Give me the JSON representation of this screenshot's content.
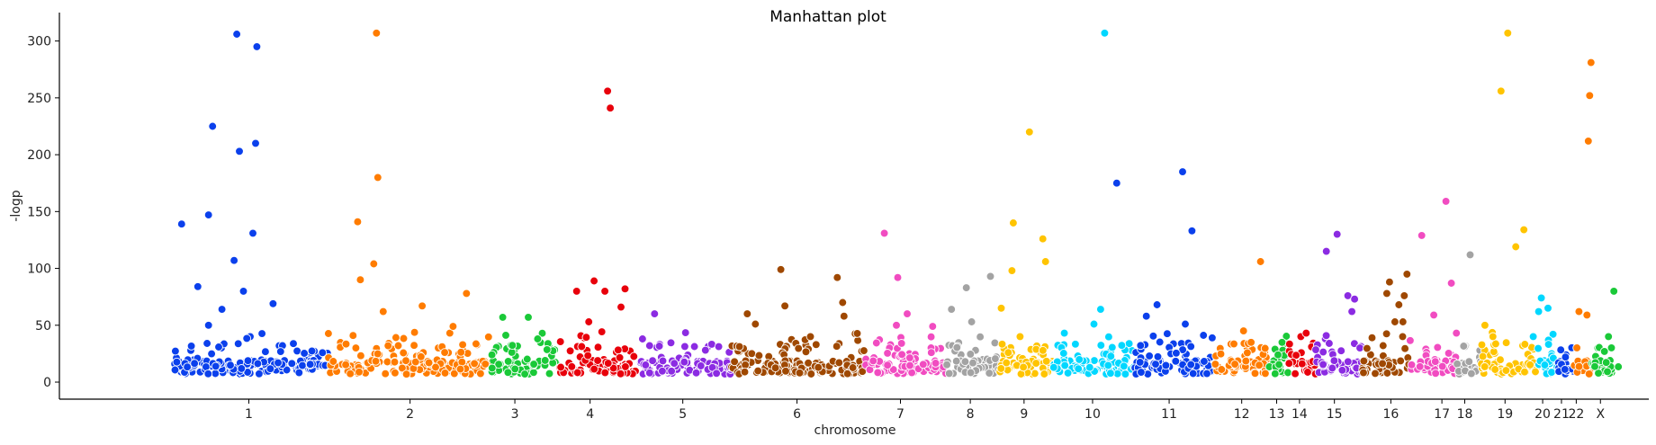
{
  "chart_data": {
    "type": "scatter",
    "title": "Manhattan plot",
    "xlabel": "chromosome",
    "ylabel": "-logp",
    "ylim": [
      -15,
      325
    ],
    "yticks": [
      0,
      50,
      100,
      150,
      200,
      250,
      300
    ],
    "grid": false,
    "legend": "none",
    "chromosomes": [
      {
        "name": "1",
        "color": "#0b40ec",
        "start": 0,
        "end": 11.5,
        "label_pos": 5.6,
        "peaks": [
          [
            0.6,
            139
          ],
          [
            1.8,
            84
          ],
          [
            2.6,
            147
          ],
          [
            2.9,
            225
          ],
          [
            3.6,
            64
          ],
          [
            4.7,
            306
          ],
          [
            4.9,
            203
          ],
          [
            5.2,
            80
          ],
          [
            6.2,
            295
          ],
          [
            6.1,
            210
          ],
          [
            5.9,
            131
          ],
          [
            4.5,
            107
          ],
          [
            7.4,
            69
          ],
          [
            2.6,
            50
          ]
        ]
      },
      {
        "name": "2",
        "color": "#ff7c00",
        "start": 11.5,
        "end": 23.5,
        "label_pos": 17.6,
        "peaks": [
          [
            13.7,
            141
          ],
          [
            13.9,
            90
          ],
          [
            15.1,
            307
          ],
          [
            15.2,
            180
          ],
          [
            14.9,
            104
          ],
          [
            15.6,
            62
          ],
          [
            18.5,
            67
          ],
          [
            21.8,
            78
          ],
          [
            20.8,
            49
          ]
        ]
      },
      {
        "name": "3",
        "color": "#1ac938",
        "start": 23.5,
        "end": 28.5,
        "label_pos": 25.4,
        "peaks": [
          [
            24.5,
            57
          ],
          [
            26.4,
            57
          ],
          [
            27.1,
            38
          ]
        ]
      },
      {
        "name": "4",
        "color": "#e8000b",
        "start": 28.5,
        "end": 34.5,
        "label_pos": 31.0,
        "peaks": [
          [
            30.0,
            80
          ],
          [
            31.3,
            89
          ],
          [
            32.1,
            80
          ],
          [
            32.3,
            256
          ],
          [
            32.5,
            241
          ],
          [
            33.6,
            82
          ],
          [
            33.3,
            66
          ],
          [
            30.9,
            53
          ]
        ]
      },
      {
        "name": "5",
        "color": "#8b2be2",
        "start": 34.5,
        "end": 41.5,
        "label_pos": 37.9,
        "peaks": [
          [
            35.8,
            60
          ],
          [
            34.9,
            38
          ]
        ]
      },
      {
        "name": "6",
        "color": "#9f4800",
        "start": 41.5,
        "end": 51.5,
        "label_pos": 46.4,
        "peaks": [
          [
            42.7,
            60
          ],
          [
            43.3,
            51
          ],
          [
            45.2,
            99
          ],
          [
            45.5,
            67
          ],
          [
            49.4,
            92
          ],
          [
            49.8,
            70
          ],
          [
            49.9,
            58
          ],
          [
            47.4,
            40
          ]
        ]
      },
      {
        "name": "7",
        "color": "#f14cc1",
        "start": 51.5,
        "end": 57.5,
        "label_pos": 54.1,
        "peaks": [
          [
            52.9,
            131
          ],
          [
            53.9,
            92
          ],
          [
            54.6,
            60
          ],
          [
            53.8,
            50
          ],
          [
            56.5,
            49
          ]
        ]
      },
      {
        "name": "8",
        "color": "#a3a3a3",
        "start": 57.5,
        "end": 61.5,
        "label_pos": 59.3,
        "peaks": [
          [
            57.9,
            64
          ],
          [
            59.0,
            83
          ],
          [
            59.4,
            53
          ],
          [
            60.8,
            93
          ]
        ]
      },
      {
        "name": "9",
        "color": "#ffc400",
        "start": 61.5,
        "end": 65.5,
        "label_pos": 63.3,
        "peaks": [
          [
            61.6,
            65
          ],
          [
            62.5,
            140
          ],
          [
            62.4,
            98
          ],
          [
            63.7,
            220
          ],
          [
            64.7,
            126
          ],
          [
            64.9,
            106
          ],
          [
            63.0,
            40
          ]
        ]
      },
      {
        "name": "10",
        "color": "#00d7ff",
        "start": 65.5,
        "end": 71.5,
        "label_pos": 68.4,
        "peaks": [
          [
            69.3,
            307
          ],
          [
            68.5,
            51
          ],
          [
            69.0,
            64
          ],
          [
            66.3,
            43
          ]
        ]
      },
      {
        "name": "11",
        "color": "#0b40ec",
        "start": 71.5,
        "end": 77.5,
        "label_pos": 74.1,
        "peaks": [
          [
            70.2,
            175
          ],
          [
            72.4,
            58
          ],
          [
            73.2,
            68
          ],
          [
            75.1,
            185
          ],
          [
            75.3,
            51
          ],
          [
            75.8,
            133
          ]
        ]
      },
      {
        "name": "12",
        "color": "#ff7c00",
        "start": 77.5,
        "end": 81.5,
        "label_pos": 79.5,
        "peaks": [
          [
            80.9,
            106
          ],
          [
            80.2,
            35
          ]
        ]
      },
      {
        "name": "13",
        "color": "#1ac938",
        "start": 81.5,
        "end": 83.0,
        "label_pos": 82.1,
        "peaks": [
          [
            82.5,
            35
          ],
          [
            82.2,
            24
          ]
        ]
      },
      {
        "name": "14",
        "color": "#e8000b",
        "start": 83.0,
        "end": 85.0,
        "label_pos": 83.8,
        "peaks": [
          [
            83.9,
            40
          ],
          [
            84.3,
            43
          ],
          [
            84.7,
            31
          ]
        ]
      },
      {
        "name": "15",
        "color": "#8b2be2",
        "start": 85.0,
        "end": 88.5,
        "label_pos": 86.4,
        "peaks": [
          [
            85.8,
            115
          ],
          [
            86.6,
            130
          ],
          [
            87.4,
            76
          ],
          [
            87.9,
            73
          ],
          [
            87.7,
            62
          ],
          [
            88.3,
            30
          ]
        ]
      },
      {
        "name": "16",
        "color": "#9f4800",
        "start": 88.5,
        "end": 92.0,
        "label_pos": 90.6,
        "peaks": [
          [
            89.2,
            39
          ],
          [
            90.5,
            88
          ],
          [
            90.3,
            78
          ],
          [
            90.9,
            53
          ],
          [
            91.5,
            53
          ],
          [
            91.6,
            76
          ],
          [
            91.8,
            95
          ],
          [
            91.2,
            68
          ]
        ]
      },
      {
        "name": "17",
        "color": "#f14cc1",
        "start": 92.0,
        "end": 95.5,
        "label_pos": 94.4,
        "peaks": [
          [
            92.9,
            129
          ],
          [
            93.8,
            59
          ],
          [
            94.7,
            159
          ],
          [
            95.1,
            87
          ]
        ]
      },
      {
        "name": "18",
        "color": "#a3a3a3",
        "start": 95.5,
        "end": 97.3,
        "label_pos": 96.1,
        "peaks": [
          [
            96.5,
            112
          ]
        ]
      },
      {
        "name": "19",
        "color": "#ffc400",
        "start": 97.3,
        "end": 101.5,
        "label_pos": 99.1,
        "peaks": [
          [
            97.6,
            50
          ],
          [
            98.8,
            256
          ],
          [
            99.3,
            307
          ],
          [
            99.9,
            119
          ],
          [
            100.5,
            134
          ],
          [
            98.2,
            40
          ]
        ]
      },
      {
        "name": "20",
        "color": "#00d7ff",
        "start": 101.5,
        "end": 103.0,
        "label_pos": 101.9,
        "peaks": [
          [
            101.8,
            74
          ],
          [
            102.3,
            65
          ],
          [
            101.6,
            62
          ],
          [
            101.2,
            40
          ]
        ]
      },
      {
        "name": "21",
        "color": "#0b40ec",
        "start": 103.0,
        "end": 104.2,
        "label_pos": 103.3,
        "peaks": [
          [
            103.6,
            22
          ]
        ]
      },
      {
        "name": "22",
        "color": "#ff7c00",
        "start": 104.2,
        "end": 105.5,
        "label_pos": 104.4,
        "peaks": [
          [
            104.6,
            62
          ],
          [
            105.5,
            281
          ],
          [
            105.4,
            252
          ],
          [
            105.3,
            212
          ],
          [
            105.2,
            59
          ]
        ]
      },
      {
        "name": "X",
        "color": "#1ac938",
        "start": 105.5,
        "end": 107.6,
        "label_pos": 106.2,
        "peaks": [
          [
            107.2,
            80
          ],
          [
            106.8,
            40
          ],
          [
            106.5,
            27
          ]
        ]
      }
    ]
  }
}
